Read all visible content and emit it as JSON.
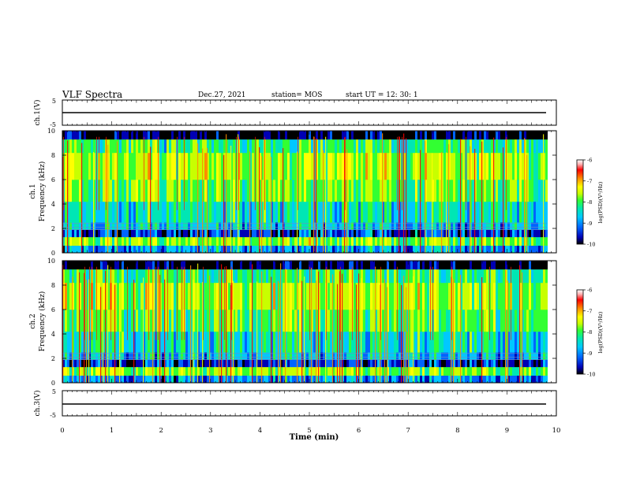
{
  "header": {
    "title": "VLF Spectra",
    "date": "Dec.27, 2021",
    "station": "station= MOS",
    "start_ut": "start  UT  =   12: 30: 1"
  },
  "chart_data": [
    {
      "type": "line",
      "panel": "ch1-waveform",
      "ylabel": "ch.1(V)",
      "ylim": [
        -5,
        5
      ],
      "yticks": [
        "5",
        "-5"
      ],
      "x": [
        0,
        9.8
      ],
      "values": [
        -0.3,
        -0.3
      ],
      "grid": false
    },
    {
      "type": "heatmap",
      "panel": "ch1-spectrogram",
      "ylabel_top": "ch.1",
      "ylabel": "Frequency  (kHz)",
      "ylim": [
        0,
        10
      ],
      "yticks": [
        "0",
        "2",
        "4",
        "6",
        "8",
        "10"
      ],
      "x_range": [
        0,
        9.8
      ],
      "colorbar": {
        "label": "log(PSD)(V²/Hz)",
        "ticks": [
          "-6",
          "-7",
          "-8",
          "-9",
          "-10"
        ],
        "range": [
          -10,
          -6
        ]
      }
    },
    {
      "type": "heatmap",
      "panel": "ch2-spectrogram",
      "ylabel_top": "ch.2",
      "ylabel": "Frequency  (kHz)",
      "ylim": [
        0,
        10
      ],
      "yticks": [
        "0",
        "2",
        "4",
        "6",
        "8",
        "10"
      ],
      "x_range": [
        0,
        9.8
      ],
      "colorbar": {
        "label": "log(PSD)(V²/Hz)",
        "ticks": [
          "-6",
          "-7",
          "-8",
          "-9",
          "-10"
        ],
        "range": [
          -10,
          -6
        ]
      }
    },
    {
      "type": "line",
      "panel": "ch3-waveform",
      "ylabel": "ch.3(V)",
      "ylim": [
        -5,
        5
      ],
      "yticks": [
        "5",
        "-5"
      ],
      "x": [
        0,
        9.8
      ],
      "values": [
        -0.3,
        -0.3
      ],
      "grid": false
    }
  ],
  "xaxis": {
    "label": "Time  (min)",
    "ticks": [
      "0",
      "1",
      "2",
      "3",
      "4",
      "5",
      "6",
      "7",
      "8",
      "9",
      "10"
    ],
    "xlim": [
      0,
      10
    ]
  },
  "colors": {
    "background": "#ffffff",
    "axis": "#000000",
    "colormap": [
      "#000000",
      "#0000b4",
      "#0064ff",
      "#00c8ff",
      "#00e6b4",
      "#32ff32",
      "#c8ff00",
      "#ffff00",
      "#ff8c00",
      "#ff0000",
      "#ffb4b4",
      "#ffffff"
    ]
  }
}
